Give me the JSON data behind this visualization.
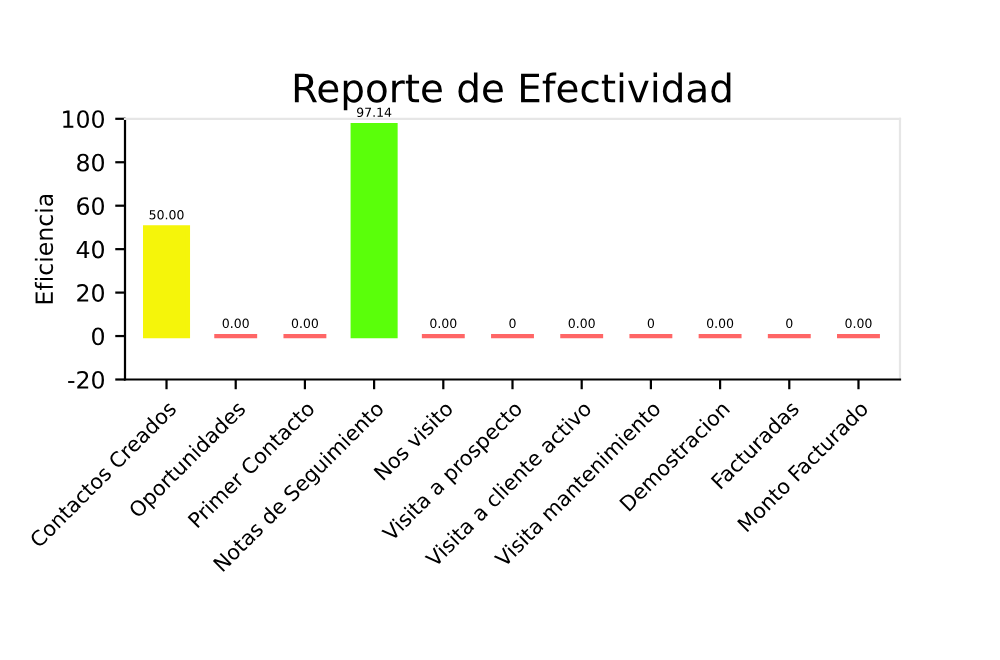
{
  "chart_data": {
    "type": "bar",
    "title": "Reporte de Efectividad",
    "ylabel": "Eficiencia",
    "categories": [
      "Contactos Creados",
      "Oportunidades",
      "Primer Contacto",
      "Notas de Seguimiento",
      "Nos visito",
      "Visita a prospecto",
      "Visita a cliente activo",
      "Visita mantenimiento",
      "Demostracion",
      "Facturadas",
      "Monto Facturado"
    ],
    "values": [
      50,
      0,
      0,
      97.14,
      0,
      0,
      0,
      0,
      0,
      0,
      0
    ],
    "colors": [
      "#f5f50a",
      "#ff6666",
      "#ff6666",
      "#5aff0a",
      "#ff6666",
      "#ff6666",
      "#ff6666",
      "#ff6666",
      "#ff6666",
      "#ff6666",
      "#ff6666"
    ],
    "value_labels": [
      "50.00",
      "0.00",
      "0.00",
      "97.14",
      "0.00",
      "0",
      "0.00",
      "0",
      "0.00",
      "0",
      "0.00"
    ],
    "ylim": [
      -20,
      100
    ],
    "yticks": [
      -20,
      0,
      20,
      40,
      60,
      80,
      100
    ],
    "grid": false,
    "legend": false
  }
}
